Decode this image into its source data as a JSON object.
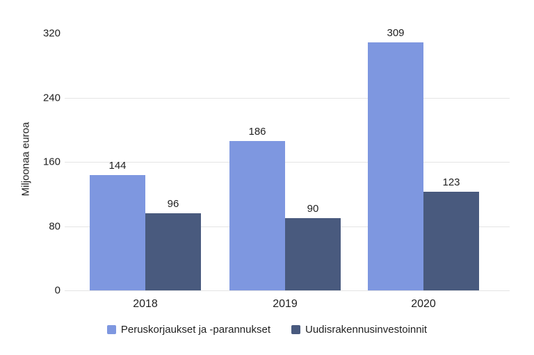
{
  "chart_data": {
    "type": "bar",
    "title": "",
    "ylabel": "Miljoonaa euroa",
    "xlabel": "",
    "categories": [
      "2018",
      "2019",
      "2020"
    ],
    "series": [
      {
        "name": "Peruskorjaukset ja -parannukset",
        "color": "#7E97E0",
        "values": [
          144,
          186,
          309
        ]
      },
      {
        "name": "Uudisrakennusinvestoinnit",
        "color": "#495A7E",
        "values": [
          96,
          90,
          123
        ]
      }
    ],
    "yticks": [
      0,
      80,
      160,
      240,
      320
    ],
    "gridline_ticks": [
      0,
      80,
      160,
      240
    ],
    "ylim": [
      0,
      350
    ],
    "grid": true,
    "value_labels": true,
    "legend_position": "bottom",
    "colors": {
      "text": "#1f1f1f",
      "gridline": "#e4e4e4",
      "background": "#ffffff"
    }
  }
}
